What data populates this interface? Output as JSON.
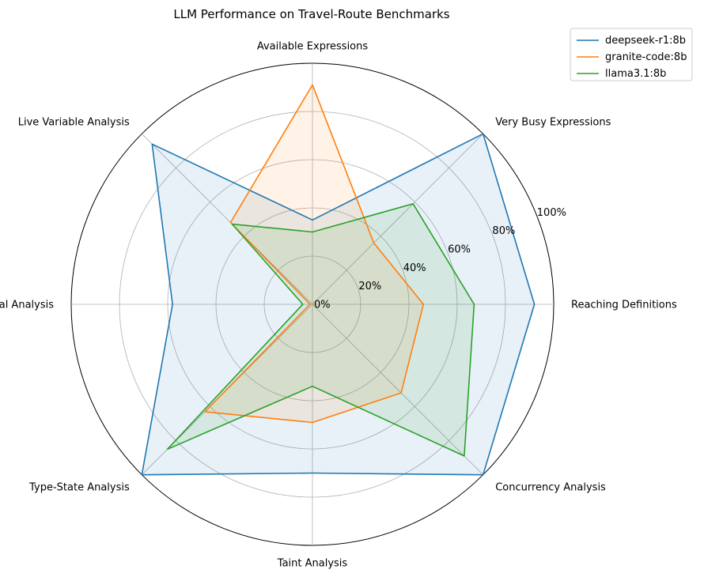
{
  "chart_data": {
    "type": "radar",
    "title": "LLM Performance on Travel-Route Benchmarks",
    "categories": [
      "Reaching Definitions",
      "Very Busy Expressions",
      "Available Expressions",
      "Live Variable Analysis",
      "Interval Analysis",
      "Type-State Analysis",
      "Taint Analysis",
      "Concurrency Analysis"
    ],
    "rlim": [
      0,
      100
    ],
    "r_ticks": [
      0,
      20,
      40,
      60,
      80,
      100
    ],
    "r_tick_labels": [
      "0%",
      "20%",
      "40%",
      "60%",
      "80%",
      "100%"
    ],
    "grid": true,
    "legend_position": "upper-right-outside",
    "series": [
      {
        "name": "deepseek-r1:8b",
        "color": "#1f77b4",
        "values": [
          92,
          100,
          35,
          94,
          58,
          100,
          70,
          100
        ]
      },
      {
        "name": "granite-code:8b",
        "color": "#ff7f0e",
        "values": [
          46,
          36,
          91,
          48,
          1,
          63,
          49,
          52
        ]
      },
      {
        "name": "llama3.1:8b",
        "color": "#2ca02c",
        "values": [
          67,
          59,
          30,
          47,
          4,
          85,
          34,
          89
        ]
      }
    ]
  }
}
